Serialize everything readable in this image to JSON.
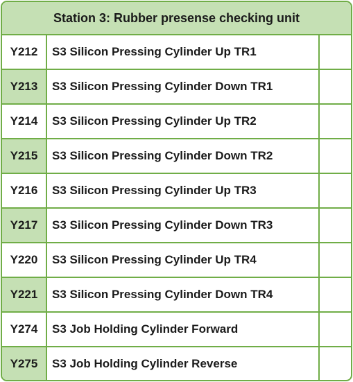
{
  "header": {
    "title": "Station 3: Rubber presense checking unit"
  },
  "colors": {
    "border": "#70ad47",
    "highlight": "#c5e0b4"
  },
  "rows": [
    {
      "code": "Y212",
      "description": "S3 Silicon Pressing Cylinder Up TR1",
      "highlighted": false
    },
    {
      "code": "Y213",
      "description": "S3 Silicon Pressing Cylinder Down TR1",
      "highlighted": true
    },
    {
      "code": "Y214",
      "description": "S3 Silicon Pressing Cylinder Up TR2",
      "highlighted": false
    },
    {
      "code": "Y215",
      "description": "S3 Silicon Pressing Cylinder Down TR2",
      "highlighted": true
    },
    {
      "code": "Y216",
      "description": "S3 Silicon Pressing Cylinder Up TR3",
      "highlighted": false
    },
    {
      "code": "Y217",
      "description": "S3 Silicon Pressing Cylinder Down TR3",
      "highlighted": true
    },
    {
      "code": "Y220",
      "description": "S3 Silicon Pressing Cylinder Up TR4",
      "highlighted": false
    },
    {
      "code": "Y221",
      "description": "S3 Silicon Pressing Cylinder Down TR4",
      "highlighted": true
    },
    {
      "code": "Y274",
      "description": "S3 Job Holding Cylinder Forward",
      "highlighted": false
    },
    {
      "code": "Y275",
      "description": "S3 Job Holding Cylinder Reverse",
      "highlighted": true
    }
  ]
}
